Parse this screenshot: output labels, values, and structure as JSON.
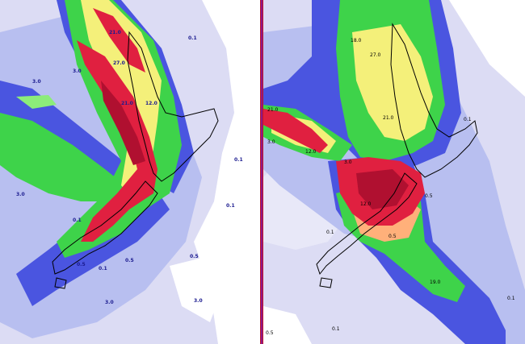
{
  "left_panel": {
    "labels": [
      "21.0",
      "27.0",
      "21.0",
      "12.0",
      "3.0",
      "3.0",
      "3.0",
      "0.1",
      "0.5",
      "0.1",
      "3.0",
      "0.1",
      "0.1",
      "0.1",
      "0.5",
      "0.5",
      "3.0"
    ]
  },
  "right_panel": {
    "labels": [
      "18.0",
      "27.0",
      "21.0",
      "21.0",
      "12.0",
      "3.0",
      "3.0",
      "0.1",
      "0.1",
      "12.0",
      "0.5",
      "0.5",
      "19.0",
      "0.1",
      "0.5",
      "0.1"
    ]
  },
  "colors": {
    "background": "#dcdcf4",
    "light_blue": "#b8bff0",
    "blue": "#4a55e0",
    "deep_blue": "#2f3ad0",
    "green": "#3ed34a",
    "light_green": "#8cec7a",
    "yellow": "#f4f07a",
    "orange": "#ffb07a",
    "red": "#e02040",
    "dark_red": "#b01030",
    "white": "#ffffff",
    "divider": "#c0122a"
  }
}
